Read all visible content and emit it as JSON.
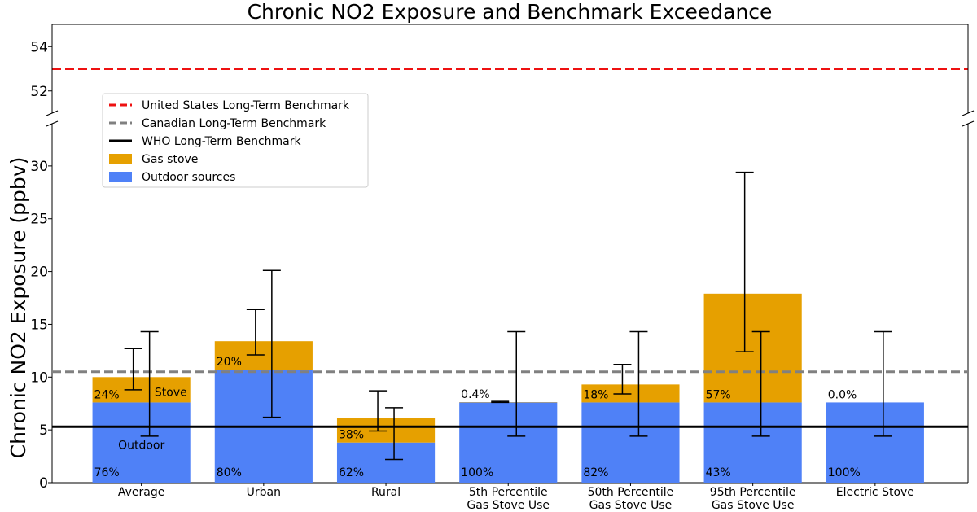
{
  "chart_data": {
    "type": "bar",
    "title": "Chronic NO2 Exposure and Benchmark Exceedance",
    "ylabel": "Chronic NO2 Exposure (ppbv)",
    "xlabel": "",
    "ylim_lower": [
      0,
      34
    ],
    "ylim_upper": [
      51,
      55
    ],
    "yticks_lower": [
      0,
      5,
      10,
      15,
      20,
      25,
      30
    ],
    "yticks_upper": [
      52,
      54
    ],
    "broken_axis": true,
    "grid": false,
    "legend_position": "upper-left",
    "categories": [
      [
        "Average"
      ],
      [
        "Urban"
      ],
      [
        "Rural"
      ],
      [
        "5th Percentile",
        "Gas Stove Use"
      ],
      [
        "50th Percentile",
        "Gas Stove Use"
      ],
      [
        "95th Percentile",
        "Gas Stove Use"
      ],
      [
        "Electric Stove"
      ]
    ],
    "series": [
      {
        "name": "Outdoor sources",
        "color": "#4f81f7",
        "values": [
          7.6,
          10.7,
          3.8,
          7.6,
          7.6,
          7.6,
          7.6
        ],
        "labels": [
          "76%",
          "80%",
          "62%",
          "100%",
          "82%",
          "43%",
          "100%"
        ]
      },
      {
        "name": "Gas stove",
        "color": "#e6a000",
        "values": [
          2.4,
          2.7,
          2.3,
          0.03,
          1.7,
          10.3,
          0.0
        ],
        "labels": [
          "24%",
          "20%",
          "38%",
          "0.4%",
          "18%",
          "57%",
          "0.0%"
        ]
      }
    ],
    "error_bars": {
      "gas_stove": [
        {
          "center": 10.7,
          "low": 8.8,
          "high": 12.7
        },
        {
          "center": 14.3,
          "low": 12.1,
          "high": 16.4
        },
        {
          "center": 6.8,
          "low": 4.9,
          "high": 8.7
        },
        {
          "center": 7.7,
          "low": 7.6,
          "high": 7.7
        },
        {
          "center": 9.8,
          "low": 8.4,
          "high": 11.2
        },
        {
          "center": 20.9,
          "low": 12.4,
          "high": 29.4
        }
      ],
      "total": [
        {
          "center": 9.3,
          "low": 4.4,
          "high": 14.3
        },
        {
          "center": 13.1,
          "low": 6.2,
          "high": 20.1
        },
        {
          "center": 4.6,
          "low": 2.2,
          "high": 7.1
        },
        {
          "center": 9.3,
          "low": 4.4,
          "high": 14.3
        },
        {
          "center": 9.3,
          "low": 4.4,
          "high": 14.3
        },
        {
          "center": 9.3,
          "low": 4.4,
          "high": 14.3
        },
        {
          "center": 9.3,
          "low": 4.4,
          "high": 14.3
        }
      ]
    },
    "benchmarks": [
      {
        "name": "United States Long-Term Benchmark",
        "value": 53,
        "color": "#ee1111",
        "style": "dashed"
      },
      {
        "name": "Canadian Long-Term Benchmark",
        "value": 10.5,
        "color": "#808080",
        "style": "dashed"
      },
      {
        "name": "WHO Long-Term Benchmark",
        "value": 5.3,
        "color": "#000000",
        "style": "solid"
      }
    ],
    "annotations": [
      {
        "text": "Stove",
        "category_index": 0,
        "segment": "Gas stove"
      },
      {
        "text": "Outdoor",
        "category_index": 0,
        "segment": "Outdoor sources"
      }
    ],
    "legend": [
      {
        "label": "United States Long-Term Benchmark",
        "kind": "line",
        "color": "#ee1111",
        "style": "dashed"
      },
      {
        "label": "Canadian Long-Term Benchmark",
        "kind": "line",
        "color": "#808080",
        "style": "dashed"
      },
      {
        "label": "WHO Long-Term Benchmark",
        "kind": "line",
        "color": "#000000",
        "style": "solid"
      },
      {
        "label": "Gas stove",
        "kind": "patch",
        "color": "#e6a000"
      },
      {
        "label": "Outdoor sources",
        "kind": "patch",
        "color": "#4f81f7"
      }
    ]
  }
}
